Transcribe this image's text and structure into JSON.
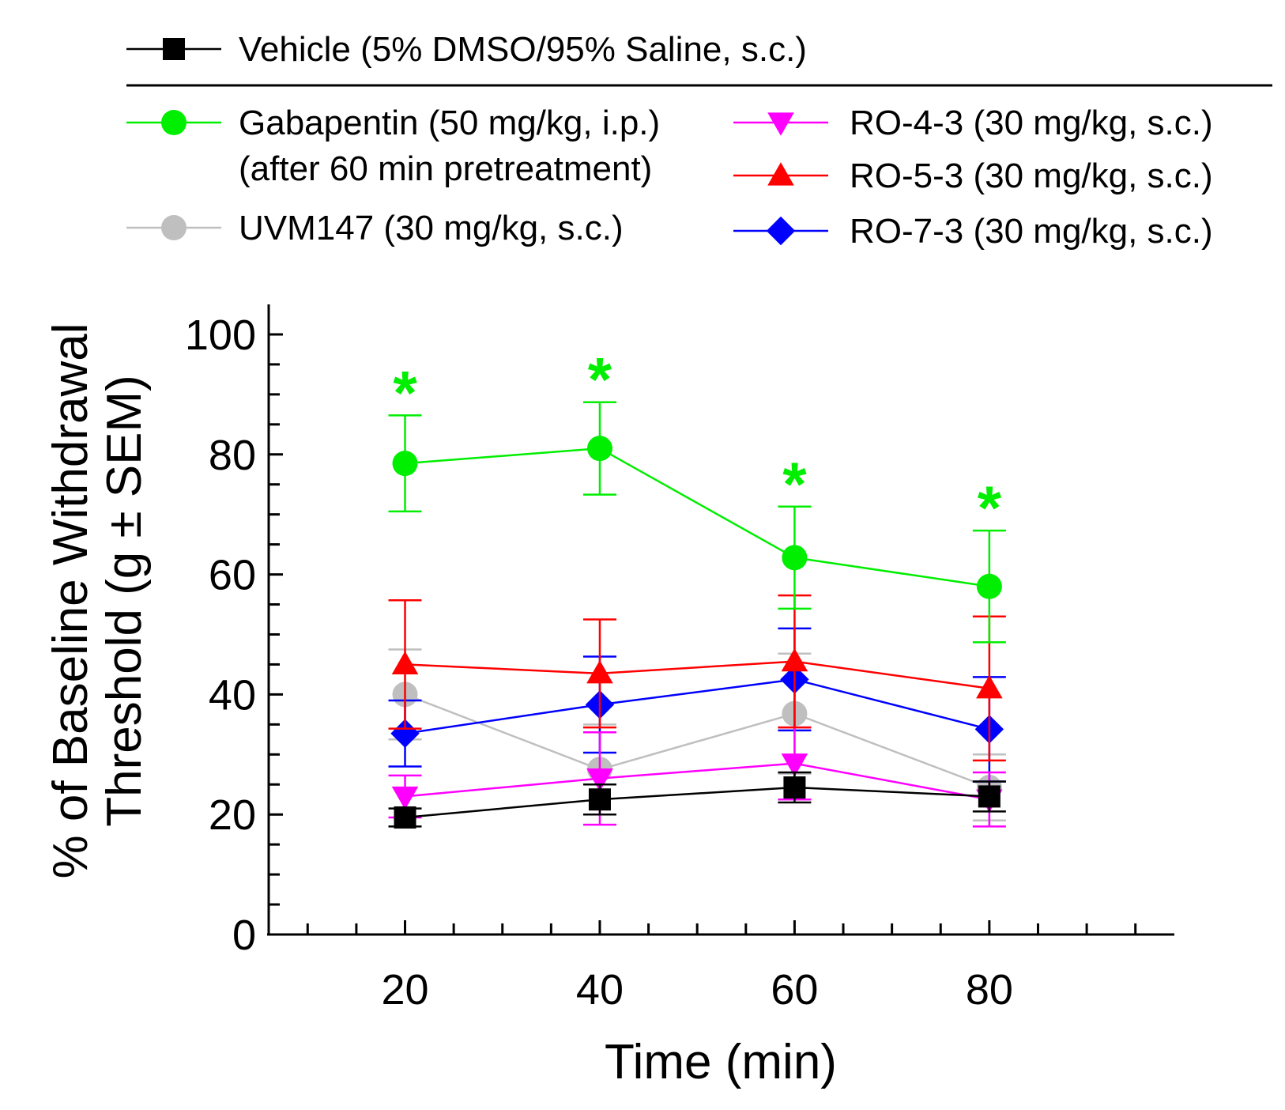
{
  "chart_data": {
    "type": "line",
    "xlabel": "Time (min)",
    "ylabel": [
      "% of Baseline Withdrawal",
      "Threshold (g ± SEM)"
    ],
    "xlim": [
      6,
      99
    ],
    "ylim": [
      0,
      105
    ],
    "x_ticks": [
      20,
      40,
      60,
      80
    ],
    "y_ticks": [
      0,
      20,
      40,
      60,
      80,
      100
    ],
    "x": [
      20,
      40,
      60,
      80
    ],
    "series": [
      {
        "key": "vehicle",
        "name": "Vehicle (5% DMSO/95% Saline, s.c.)",
        "color": "#000000",
        "marker": "square",
        "values": [
          19.5,
          22.5,
          24.5,
          23
        ],
        "sem": [
          1.5,
          2.5,
          2.5,
          2.5
        ]
      },
      {
        "key": "gabapentin",
        "name": "Gabapentin (50 mg/kg, i.p.)",
        "name_line2": "(after 60 min pretreatment)",
        "color": "#00ee00",
        "marker": "circle",
        "values": [
          78.5,
          81,
          62.8,
          58
        ],
        "sem": [
          8,
          7.7,
          8.5,
          9.3
        ],
        "significance": [
          "*",
          "*",
          "*",
          "*"
        ]
      },
      {
        "key": "uvm147",
        "name": "UVM147 (30 mg/kg, s.c.)",
        "color": "#bfbfbf",
        "marker": "circle",
        "values": [
          40,
          27.5,
          36.8,
          24.5
        ],
        "sem": [
          7.5,
          7.5,
          10,
          5.5
        ]
      },
      {
        "key": "ro43",
        "name": "RO-4-3 (30 mg/kg, s.c.)",
        "color": "#ff00ff",
        "marker": "triangle-down",
        "values": [
          23,
          26,
          28.5,
          22.5
        ],
        "sem": [
          3.5,
          7.7,
          6,
          4.5
        ]
      },
      {
        "key": "ro53",
        "name": "RO-5-3 (30 mg/kg, s.c.)",
        "color": "#ff0000",
        "marker": "triangle-up",
        "values": [
          45,
          43.5,
          45.5,
          41
        ],
        "sem": [
          10.7,
          9,
          11,
          12
        ]
      },
      {
        "key": "ro73",
        "name": "RO-7-3 (30 mg/kg, s.c.)",
        "color": "#0000ff",
        "marker": "diamond",
        "values": [
          33.5,
          38.3,
          42.5,
          34.2
        ],
        "sem": [
          5.5,
          8,
          8.5,
          8.7
        ]
      }
    ],
    "legend": "top",
    "grid": false
  }
}
